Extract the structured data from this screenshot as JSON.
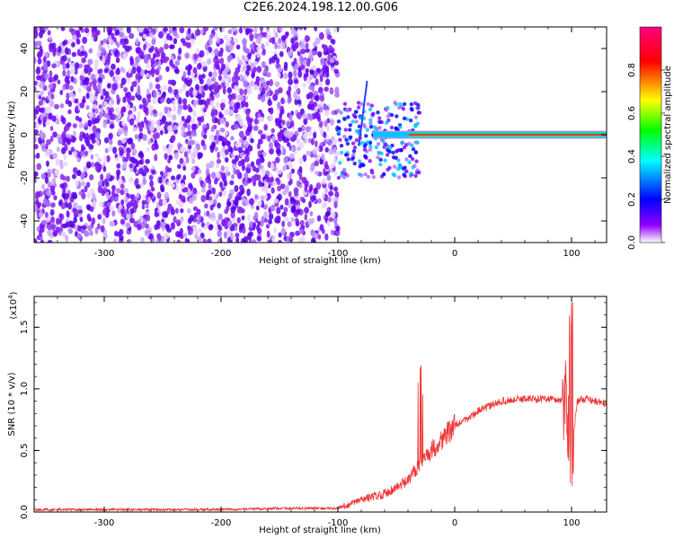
{
  "title": "C2E6.2024.198.12.00.G06",
  "chart_data": [
    {
      "type": "heatmap",
      "xlabel": "Height of straight line (km)",
      "ylabel": "Frequency (Hz)",
      "xlim": [
        -360,
        130
      ],
      "ylim": [
        -50,
        50
      ],
      "xticks": [
        -300,
        -200,
        -100,
        0,
        100
      ],
      "yticks": [
        -40,
        -20,
        0,
        20,
        40
      ],
      "colorbar": {
        "label": "Normalized spectral amplitude",
        "range": [
          0,
          1
        ],
        "ticks": [
          "0.0",
          "0.2",
          "0.4",
          "0.6",
          "0.8"
        ],
        "colors": [
          "#ffffff",
          "#8000ff",
          "#0000ff",
          "#00ffff",
          "#00ff00",
          "#ffff00",
          "#ff0000",
          "#ff0080"
        ]
      },
      "features": [
        {
          "name": "noise",
          "x": [
            -360,
            -100
          ],
          "y": [
            -50,
            50
          ],
          "amplitude": 0.15
        },
        {
          "name": "signal",
          "x": [
            -100,
            130
          ],
          "y": 0,
          "amplitude": 0.85
        }
      ]
    },
    {
      "type": "line",
      "xlabel": "Height of straight line (km)",
      "ylabel": "SNR (10 * v/v)",
      "scale_label": "(x10",
      "scale_exp": "4",
      "scale_close": ")",
      "color": "#ee3333",
      "xlim": [
        -360,
        130
      ],
      "ylim": [
        0,
        1.75
      ],
      "xticks": [
        -300,
        -200,
        -100,
        0,
        100
      ],
      "yticks": [
        "0.0",
        "0.5",
        "1.0",
        "1.5"
      ],
      "x": [
        -360,
        -300,
        -200,
        -150,
        -100,
        -90,
        -80,
        -60,
        -40,
        -30,
        -20,
        -10,
        0,
        10,
        20,
        30,
        40,
        60,
        80,
        95,
        100,
        105,
        110,
        130
      ],
      "y": [
        0.02,
        0.02,
        0.02,
        0.03,
        0.03,
        0.06,
        0.1,
        0.15,
        0.25,
        0.4,
        0.5,
        0.6,
        0.7,
        0.75,
        0.82,
        0.86,
        0.9,
        0.92,
        0.92,
        0.9,
        0.5,
        0.9,
        0.92,
        0.88
      ]
    }
  ]
}
